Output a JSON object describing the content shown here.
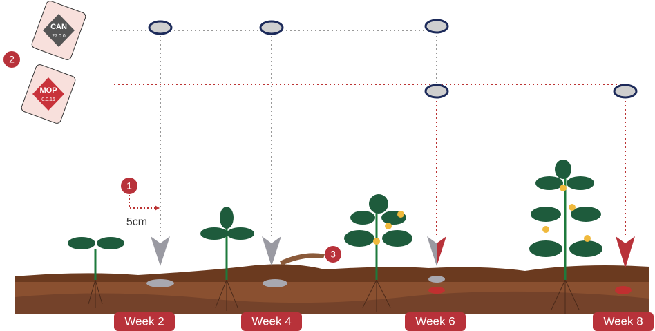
{
  "bags": [
    {
      "name": "CAN",
      "grade": "27.0.0"
    },
    {
      "name": "MOP",
      "grade": "0.0.16"
    }
  ],
  "steps": [
    "1",
    "2",
    "3"
  ],
  "distance": "5cm",
  "weeks": [
    "Week 2",
    "Week 4",
    "Week 6",
    "Week 8"
  ]
}
